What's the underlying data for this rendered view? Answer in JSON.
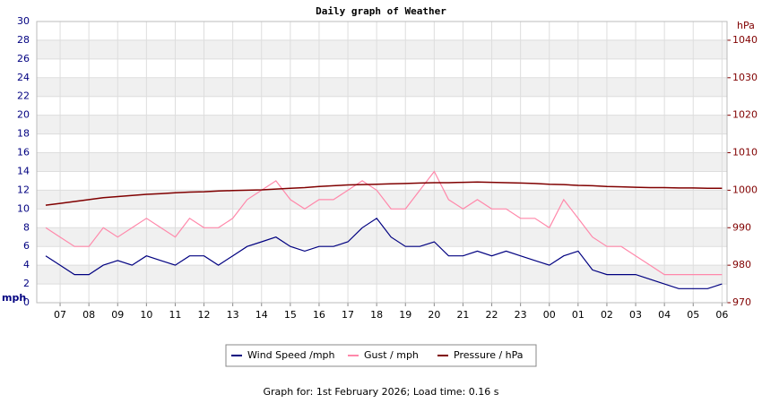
{
  "chart_data": {
    "type": "line",
    "title": "Daily graph of Weather",
    "y_label": "mph",
    "y2_label": "hPa",
    "footer": "Graph for: 1st February 2026; Load time: 0.16 s",
    "categories": [
      null,
      "07",
      null,
      "08",
      null,
      "09",
      null,
      "10",
      null,
      "11",
      null,
      "12",
      null,
      "13",
      null,
      "14",
      null,
      "15",
      null,
      "16",
      null,
      "17",
      null,
      "18",
      null,
      "19",
      null,
      "20",
      null,
      "21",
      null,
      "22",
      null,
      "23",
      null,
      "00",
      null,
      "01",
      null,
      "02",
      null,
      "03",
      null,
      "04",
      null,
      "05",
      null,
      "06"
    ],
    "ylim": [
      0,
      30
    ],
    "yticks": [
      0,
      2,
      4,
      6,
      8,
      10,
      12,
      14,
      16,
      18,
      20,
      22,
      24,
      26,
      28,
      30
    ],
    "y2lim": [
      970,
      1045
    ],
    "y2ticks": [
      970,
      980,
      990,
      1000,
      1010,
      1020,
      1030,
      1040
    ],
    "grid": true,
    "series": [
      {
        "name": "Wind Speed /mph",
        "color": "#000080",
        "values": [
          5,
          4,
          3,
          3,
          4,
          4.5,
          4,
          5,
          4.5,
          4,
          5,
          5,
          4,
          5,
          6,
          6.5,
          7,
          6,
          5.5,
          6,
          6,
          6.5,
          8,
          9,
          7,
          6,
          6,
          6.5,
          5,
          5,
          5.5,
          5,
          5.5,
          5,
          4.5,
          4,
          5,
          5.5,
          3.5,
          3,
          3,
          3,
          2.5,
          2,
          1.5,
          1.5,
          1.5,
          2
        ]
      },
      {
        "name": "Gust / mph",
        "color": "#ff88aa",
        "values": [
          8,
          7,
          6,
          6,
          8,
          7,
          8,
          9,
          8,
          7,
          9,
          8,
          8,
          9,
          11,
          12,
          13,
          11,
          10,
          11,
          11,
          12,
          13,
          12,
          10,
          10,
          12,
          14,
          11,
          10,
          11,
          10,
          10,
          9,
          9,
          8,
          11,
          9,
          7,
          6,
          6,
          5,
          4,
          3,
          3,
          3,
          3,
          3
        ]
      },
      {
        "name": "Pressure / hPa",
        "color": "#800000",
        "axis": "y2",
        "values": [
          996,
          996.5,
          997,
          997.5,
          998,
          998.3,
          998.6,
          998.9,
          999.1,
          999.3,
          999.5,
          999.6,
          999.8,
          999.9,
          1000,
          1000.1,
          1000.3,
          1000.5,
          1000.7,
          1001,
          1001.2,
          1001.4,
          1001.5,
          1001.6,
          1001.7,
          1001.8,
          1001.9,
          1002,
          1002,
          1002.1,
          1002.2,
          1002.1,
          1002,
          1001.9,
          1001.8,
          1001.6,
          1001.5,
          1001.3,
          1001.2,
          1001,
          1000.9,
          1000.8,
          1000.7,
          1000.7,
          1000.6,
          1000.6,
          1000.5,
          1000.5
        ]
      }
    ]
  }
}
